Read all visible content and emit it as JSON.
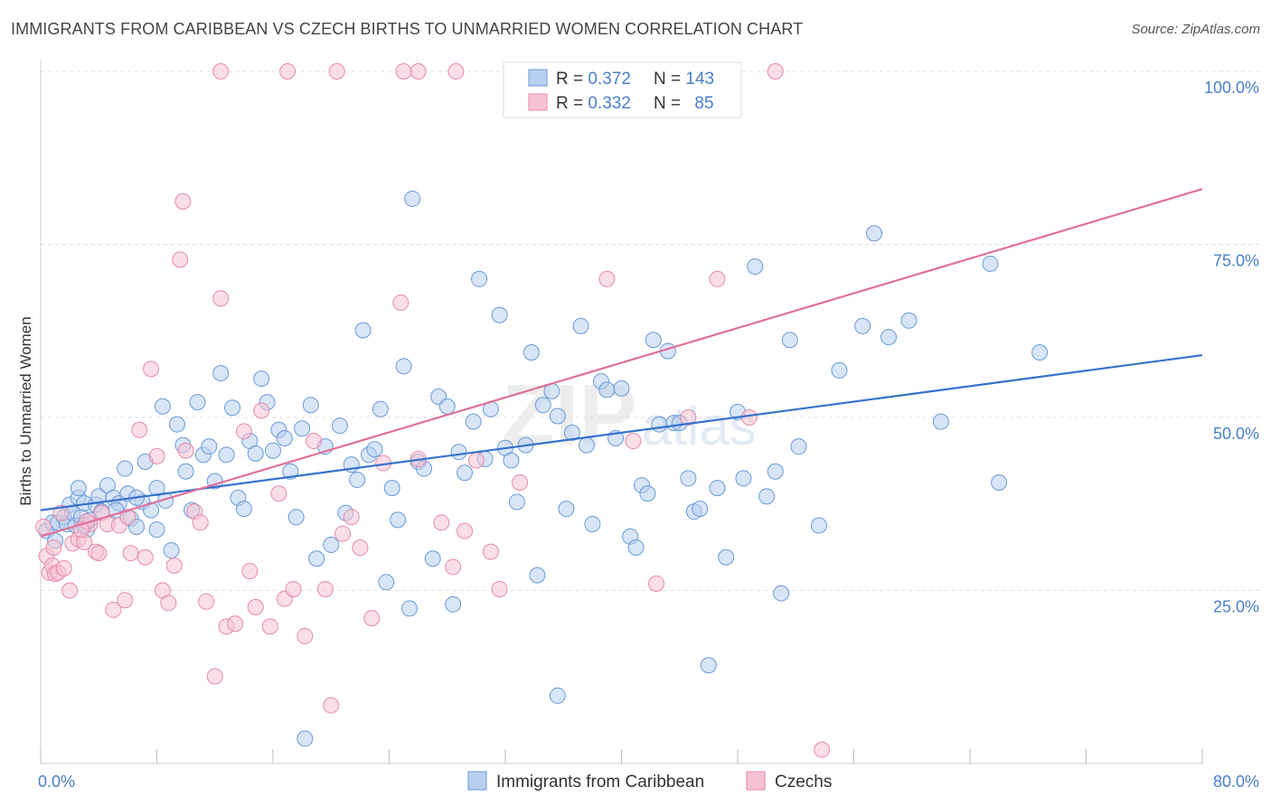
{
  "header": {
    "title": "IMMIGRANTS FROM CARIBBEAN VS CZECH BIRTHS TO UNMARRIED WOMEN CORRELATION CHART",
    "source": "Source: ZipAtlas.com"
  },
  "watermark": {
    "zip": "ZIP",
    "atlas": "atlas"
  },
  "colors": {
    "blue_fill": "#b8d0ef",
    "blue_stroke": "#6a9bd8",
    "blue_line": "#3672cc",
    "pink_fill": "#f6c3d3",
    "pink_stroke": "#e68aa8",
    "pink_line": "#e0709a",
    "tick_text": "#4a7fc8",
    "grid": "#dddddd"
  },
  "legend": {
    "rows": [
      {
        "r_label": "R = ",
        "r_value": "0.372",
        "n_label": "N = ",
        "n_value": "143"
      },
      {
        "r_label": "R = ",
        "r_value": "0.332",
        "n_label": "N = ",
        "n_value": "85"
      }
    ]
  },
  "bottom_legend": [
    "Immigrants from Caribbean",
    "Czechs"
  ],
  "chart_data": {
    "type": "scatter",
    "title": "IMMIGRANTS FROM CARIBBEAN VS CZECH BIRTHS TO UNMARRIED WOMEN CORRELATION CHART",
    "xlabel": "",
    "ylabel": "Births to Unmarried Women",
    "xlim": [
      0,
      80
    ],
    "ylim": [
      0,
      100
    ],
    "x_tick_labels": [
      {
        "value": 0,
        "label": "0.0%"
      },
      {
        "value": 80,
        "label": "80.0%"
      }
    ],
    "y_tick_labels": [
      {
        "value": 25,
        "label": "25.0%"
      },
      {
        "value": 50,
        "label": "50.0%"
      },
      {
        "value": 75,
        "label": "75.0%"
      },
      {
        "value": 100,
        "label": "100.0%"
      }
    ],
    "grid": true,
    "legend_position": "top-center",
    "series": [
      {
        "name": "Immigrants from Caribbean",
        "r": 0.372,
        "n": 143,
        "trend": [
          [
            0,
            36.6
          ],
          [
            80,
            59.0
          ]
        ],
        "points": [
          [
            0.4,
            33.6
          ],
          [
            0.8,
            34.8
          ],
          [
            1.0,
            32.2
          ],
          [
            1.2,
            34.8
          ],
          [
            1.6,
            35.6
          ],
          [
            1.8,
            34.6
          ],
          [
            2.0,
            37.4
          ],
          [
            2.2,
            36.2
          ],
          [
            2.4,
            34.4
          ],
          [
            2.6,
            38.4
          ],
          [
            2.8,
            35.6
          ],
          [
            3.0,
            37.6
          ],
          [
            3.2,
            33.8
          ],
          [
            3.4,
            35.2
          ],
          [
            3.8,
            37.4
          ],
          [
            4.0,
            38.6
          ],
          [
            4.2,
            36.4
          ],
          [
            4.6,
            40.2
          ],
          [
            5.0,
            38.4
          ],
          [
            5.4,
            37.6
          ],
          [
            5.8,
            42.6
          ],
          [
            6.0,
            39.0
          ],
          [
            6.2,
            35.4
          ],
          [
            6.6,
            34.2
          ],
          [
            7.0,
            37.8
          ],
          [
            7.2,
            43.6
          ],
          [
            7.6,
            36.6
          ],
          [
            8.0,
            33.8
          ],
          [
            8.4,
            51.6
          ],
          [
            8.6,
            38.0
          ],
          [
            9.0,
            30.8
          ],
          [
            9.4,
            49.0
          ],
          [
            9.8,
            46.0
          ],
          [
            10.0,
            42.2
          ],
          [
            10.4,
            36.6
          ],
          [
            10.8,
            52.2
          ],
          [
            11.2,
            44.6
          ],
          [
            11.6,
            45.8
          ],
          [
            12.0,
            40.8
          ],
          [
            12.4,
            56.4
          ],
          [
            12.8,
            44.6
          ],
          [
            13.2,
            51.4
          ],
          [
            13.6,
            38.4
          ],
          [
            14.0,
            36.8
          ],
          [
            14.4,
            46.6
          ],
          [
            14.8,
            44.8
          ],
          [
            15.2,
            55.6
          ],
          [
            15.6,
            52.2
          ],
          [
            16.0,
            45.2
          ],
          [
            16.4,
            48.2
          ],
          [
            16.8,
            47.0
          ],
          [
            17.2,
            42.2
          ],
          [
            17.6,
            35.6
          ],
          [
            18.0,
            48.4
          ],
          [
            18.6,
            51.8
          ],
          [
            19.0,
            29.6
          ],
          [
            19.6,
            45.8
          ],
          [
            20.0,
            31.6
          ],
          [
            20.6,
            48.8
          ],
          [
            21.0,
            36.2
          ],
          [
            21.4,
            43.2
          ],
          [
            21.8,
            41.0
          ],
          [
            22.2,
            62.6
          ],
          [
            22.6,
            44.6
          ],
          [
            23.0,
            45.4
          ],
          [
            23.4,
            51.2
          ],
          [
            23.8,
            26.2
          ],
          [
            24.2,
            39.8
          ],
          [
            24.6,
            35.2
          ],
          [
            25.0,
            57.4
          ],
          [
            25.4,
            22.4
          ],
          [
            26.0,
            43.6
          ],
          [
            26.4,
            42.6
          ],
          [
            27.0,
            29.6
          ],
          [
            27.4,
            53.0
          ],
          [
            28.0,
            51.6
          ],
          [
            28.4,
            23.0
          ],
          [
            28.8,
            45.0
          ],
          [
            29.2,
            42.0
          ],
          [
            29.8,
            49.4
          ],
          [
            30.2,
            70.0
          ],
          [
            30.6,
            44.0
          ],
          [
            31.0,
            51.2
          ],
          [
            31.6,
            64.8
          ],
          [
            32.0,
            45.6
          ],
          [
            32.4,
            43.8
          ],
          [
            32.8,
            37.8
          ],
          [
            33.4,
            46.0
          ],
          [
            33.8,
            59.4
          ],
          [
            34.2,
            27.2
          ],
          [
            34.6,
            51.8
          ],
          [
            35.2,
            53.8
          ],
          [
            35.6,
            50.2
          ],
          [
            36.2,
            36.8
          ],
          [
            36.6,
            47.8
          ],
          [
            37.2,
            63.2
          ],
          [
            37.6,
            46.0
          ],
          [
            38.0,
            34.6
          ],
          [
            38.6,
            55.2
          ],
          [
            39.0,
            54.0
          ],
          [
            39.6,
            47.0
          ],
          [
            40.0,
            54.2
          ],
          [
            40.6,
            32.8
          ],
          [
            41.0,
            31.2
          ],
          [
            41.4,
            40.2
          ],
          [
            41.8,
            39.0
          ],
          [
            42.2,
            61.2
          ],
          [
            42.6,
            49.0
          ],
          [
            43.2,
            59.6
          ],
          [
            43.6,
            49.2
          ],
          [
            44.0,
            49.2
          ],
          [
            44.6,
            41.2
          ],
          [
            45.0,
            36.4
          ],
          [
            45.4,
            36.8
          ],
          [
            46.0,
            14.2
          ],
          [
            46.6,
            39.8
          ],
          [
            47.2,
            29.8
          ],
          [
            48.0,
            50.8
          ],
          [
            48.4,
            41.2
          ],
          [
            49.2,
            71.8
          ],
          [
            50.0,
            38.6
          ],
          [
            50.6,
            42.2
          ],
          [
            51.0,
            24.6
          ],
          [
            51.6,
            61.2
          ],
          [
            52.2,
            45.8
          ],
          [
            53.6,
            34.4
          ],
          [
            55.0,
            56.8
          ],
          [
            56.6,
            63.2
          ],
          [
            57.4,
            76.6
          ],
          [
            58.4,
            61.6
          ],
          [
            59.8,
            64.0
          ],
          [
            62.0,
            49.4
          ],
          [
            65.4,
            72.2
          ],
          [
            66.0,
            40.6
          ],
          [
            68.8,
            59.4
          ],
          [
            25.6,
            81.6
          ],
          [
            18.2,
            3.6
          ],
          [
            35.6,
            9.8
          ],
          [
            2.6,
            39.8
          ],
          [
            5.2,
            36.6
          ],
          [
            3.0,
            34.4
          ],
          [
            6.6,
            38.4
          ],
          [
            8.0,
            39.8
          ]
        ]
      },
      {
        "name": "Czechs",
        "r": 0.332,
        "n": 85,
        "trend": [
          [
            0,
            32.8
          ],
          [
            80,
            83.0
          ]
        ],
        "points": [
          [
            0.2,
            34.2
          ],
          [
            0.4,
            30.0
          ],
          [
            0.6,
            27.6
          ],
          [
            0.8,
            28.6
          ],
          [
            1.0,
            27.4
          ],
          [
            1.2,
            27.6
          ],
          [
            1.6,
            28.2
          ],
          [
            2.0,
            25.0
          ],
          [
            2.2,
            31.8
          ],
          [
            2.6,
            32.4
          ],
          [
            3.0,
            32.0
          ],
          [
            3.4,
            34.6
          ],
          [
            3.8,
            30.6
          ],
          [
            4.2,
            36.2
          ],
          [
            4.6,
            34.6
          ],
          [
            5.0,
            22.2
          ],
          [
            5.4,
            34.4
          ],
          [
            5.8,
            23.6
          ],
          [
            6.2,
            30.4
          ],
          [
            6.8,
            48.2
          ],
          [
            7.2,
            29.8
          ],
          [
            7.6,
            57.0
          ],
          [
            8.0,
            44.4
          ],
          [
            8.4,
            25.0
          ],
          [
            8.8,
            23.2
          ],
          [
            9.2,
            28.6
          ],
          [
            9.6,
            72.8
          ],
          [
            10.0,
            45.2
          ],
          [
            10.6,
            36.4
          ],
          [
            11.0,
            34.8
          ],
          [
            11.4,
            23.4
          ],
          [
            12.0,
            12.6
          ],
          [
            12.4,
            67.2
          ],
          [
            12.8,
            19.8
          ],
          [
            13.4,
            20.2
          ],
          [
            14.0,
            48.0
          ],
          [
            14.4,
            27.8
          ],
          [
            14.8,
            22.6
          ],
          [
            15.2,
            51.0
          ],
          [
            15.8,
            19.8
          ],
          [
            16.4,
            39.0
          ],
          [
            16.8,
            23.8
          ],
          [
            17.4,
            25.2
          ],
          [
            18.2,
            18.4
          ],
          [
            18.8,
            46.6
          ],
          [
            19.6,
            25.2
          ],
          [
            20.0,
            8.4
          ],
          [
            20.8,
            33.2
          ],
          [
            21.4,
            35.6
          ],
          [
            22.0,
            31.2
          ],
          [
            22.8,
            21.0
          ],
          [
            23.6,
            43.4
          ],
          [
            24.8,
            66.6
          ],
          [
            26.0,
            44.0
          ],
          [
            27.6,
            34.8
          ],
          [
            28.4,
            28.4
          ],
          [
            29.2,
            33.6
          ],
          [
            30.0,
            43.8
          ],
          [
            31.0,
            30.6
          ],
          [
            31.6,
            25.2
          ],
          [
            33.0,
            40.6
          ],
          [
            34.6,
            100.0
          ],
          [
            36.2,
            100.0
          ],
          [
            37.6,
            100.0
          ],
          [
            39.0,
            70.0
          ],
          [
            40.8,
            46.6
          ],
          [
            42.4,
            26.0
          ],
          [
            44.6,
            50.0
          ],
          [
            46.6,
            70.0
          ],
          [
            48.8,
            50.0
          ],
          [
            50.6,
            100.0
          ],
          [
            53.8,
            2.0
          ],
          [
            12.4,
            100.0
          ],
          [
            17.0,
            100.0
          ],
          [
            20.4,
            100.0
          ],
          [
            25.0,
            100.0
          ],
          [
            26.0,
            100.0
          ],
          [
            28.6,
            100.0
          ],
          [
            9.8,
            81.2
          ],
          [
            4.0,
            30.4
          ],
          [
            1.4,
            36.2
          ],
          [
            6.0,
            35.6
          ],
          [
            3.2,
            35.0
          ],
          [
            0.9,
            31.2
          ],
          [
            2.8,
            33.8
          ]
        ]
      }
    ]
  }
}
